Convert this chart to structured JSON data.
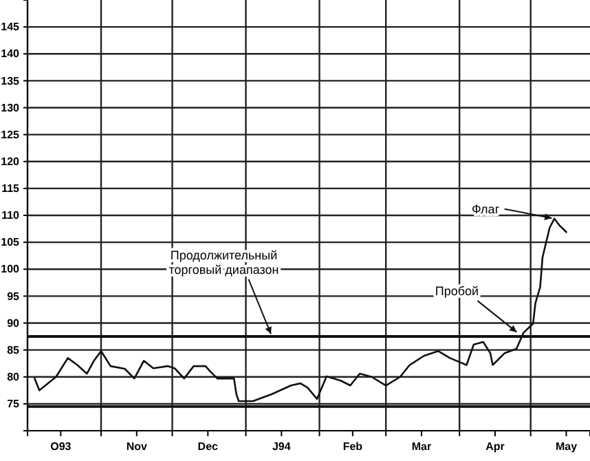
{
  "chart_data": {
    "type": "line",
    "x": [
      "1993-10-04",
      "1993-10-06",
      "1993-10-13",
      "1993-10-18",
      "1993-10-22",
      "1993-10-26",
      "1993-10-29",
      "1993-11-01",
      "1993-11-05",
      "1993-11-11",
      "1993-11-15",
      "1993-11-19",
      "1993-11-23",
      "1993-11-29",
      "1993-12-02",
      "1993-12-06",
      "1993-12-10",
      "1993-12-15",
      "1993-12-17",
      "1993-12-20",
      "1993-12-27",
      "1993-12-28",
      "1993-12-29",
      "1994-01-04",
      "1994-01-12",
      "1994-01-20",
      "1994-01-24",
      "1994-01-27",
      "1994-01-31",
      "1994-02-04",
      "1994-02-10",
      "1994-02-14",
      "1994-02-18",
      "1994-02-23",
      "1994-03-01",
      "1994-03-07",
      "1994-03-11",
      "1994-03-17",
      "1994-03-23",
      "1994-03-28",
      "1994-04-04",
      "1994-04-07",
      "1994-04-11",
      "1994-04-14",
      "1994-04-15",
      "1994-04-20",
      "1994-04-25",
      "1994-04-28",
      "1994-05-02",
      "1994-05-03",
      "1994-05-05",
      "1994-05-06",
      "1994-05-09",
      "1994-05-11",
      "1994-05-13",
      "1994-05-16"
    ],
    "series": [
      {
        "color": "#111111",
        "values": [
          79.7,
          77.5,
          80,
          83.5,
          82.2,
          80.6,
          83,
          84.8,
          82,
          81.5,
          79.7,
          83,
          81.6,
          82,
          81.6,
          79.7,
          82,
          82,
          81,
          79.7,
          79.7,
          76.8,
          75.5,
          75.5,
          76.8,
          78.4,
          78.8,
          78,
          75.9,
          80.1,
          79.3,
          78.4,
          80.6,
          80,
          78.4,
          80,
          82.2,
          83.9,
          84.8,
          83.5,
          82.2,
          86,
          86.5,
          84.4,
          82.2,
          84.4,
          85.2,
          88.2,
          89.9,
          93.7,
          96.7,
          102.2,
          107.7,
          109.4,
          108.2,
          106.9
        ]
      }
    ],
    "xlim": [
      "1993-10-01",
      "1994-05-26"
    ],
    "xticks": [
      {
        "value": "1993-10-01",
        "label": null
      },
      {
        "value": "1993-10-15",
        "label": "O93"
      },
      {
        "value": "1993-11-01",
        "label": null
      },
      {
        "value": "1993-11-16",
        "label": "Nov"
      },
      {
        "value": "1993-12-01",
        "label": null
      },
      {
        "value": "1993-12-16",
        "label": "Dec"
      },
      {
        "value": "1994-01-01",
        "label": null
      },
      {
        "value": "1994-01-16",
        "label": "J94"
      },
      {
        "value": "1994-02-01",
        "label": null
      },
      {
        "value": "1994-02-15",
        "label": "Feb"
      },
      {
        "value": "1994-03-01",
        "label": null
      },
      {
        "value": "1994-03-16",
        "label": "Mar"
      },
      {
        "value": "1994-04-01",
        "label": null
      },
      {
        "value": "1994-04-16",
        "label": "Apr"
      },
      {
        "value": "1994-05-01",
        "label": null
      },
      {
        "value": "1994-05-16",
        "label": "May"
      }
    ],
    "ylim": [
      70,
      150
    ],
    "yticks": [
      75,
      80,
      85,
      90,
      95,
      100,
      105,
      110,
      115,
      120,
      125,
      130,
      135,
      140,
      145
    ],
    "grid": true,
    "marker": "none",
    "line_style": "solid",
    "ref_lines": [
      {
        "axis": "y",
        "value": 87.5,
        "label": null
      },
      {
        "axis": "y",
        "value": 74.5,
        "label": null
      }
    ],
    "annotations": [
      {
        "text": "Продолжительный торговый диапазон",
        "x": "1994-01-12",
        "y": 87.5
      },
      {
        "text": "Пробой",
        "x": "1994-04-26",
        "y": 88
      },
      {
        "text": "Флаг",
        "x": "1994-05-11",
        "y": 109.4
      }
    ]
  }
}
